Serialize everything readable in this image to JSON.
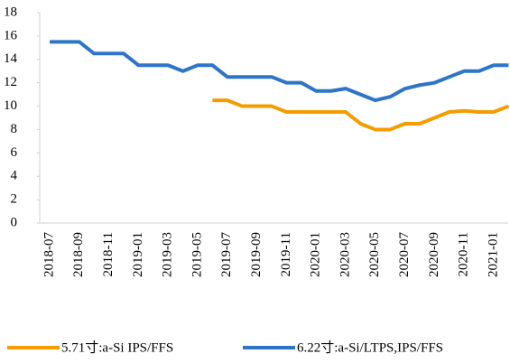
{
  "chart_data": {
    "type": "line",
    "categories": [
      "2018-07",
      null,
      "2018-09",
      null,
      "2018-11",
      null,
      "2019-01",
      null,
      "2019-03",
      null,
      "2019-05",
      null,
      "2019-07",
      null,
      "2019-09",
      null,
      "2019-11",
      null,
      "2020-01",
      null,
      "2020-03",
      null,
      "2020-05",
      null,
      "2020-07",
      null,
      "2020-09",
      null,
      "2020-11",
      null,
      "2021-01",
      null
    ],
    "series": [
      {
        "name": "5.71寸:a-Si IPS/FFS",
        "color": "#f59c00",
        "values": [
          null,
          null,
          null,
          null,
          null,
          null,
          null,
          null,
          null,
          null,
          null,
          10.5,
          10.5,
          10.0,
          10.0,
          10.0,
          9.5,
          9.5,
          9.5,
          9.5,
          9.5,
          8.5,
          8.0,
          8.0,
          8.5,
          8.5,
          9.0,
          9.5,
          9.6,
          9.5,
          9.5,
          10.0
        ]
      },
      {
        "name": "6.22寸:a-Si/LTPS,IPS/FFS",
        "color": "#2e75c8",
        "values": [
          15.5,
          15.5,
          15.5,
          14.5,
          14.5,
          14.5,
          13.5,
          13.5,
          13.5,
          13.0,
          13.5,
          13.5,
          12.5,
          12.5,
          12.5,
          12.5,
          12.0,
          12.0,
          11.3,
          11.3,
          11.5,
          11.0,
          10.5,
          10.8,
          11.5,
          11.8,
          12.0,
          12.5,
          13.0,
          13.0,
          13.5,
          13.5
        ]
      }
    ],
    "ylim": [
      0,
      18
    ],
    "yticks": [
      0,
      2,
      4,
      6,
      8,
      10,
      12,
      14,
      16,
      18
    ],
    "grid": false
  }
}
